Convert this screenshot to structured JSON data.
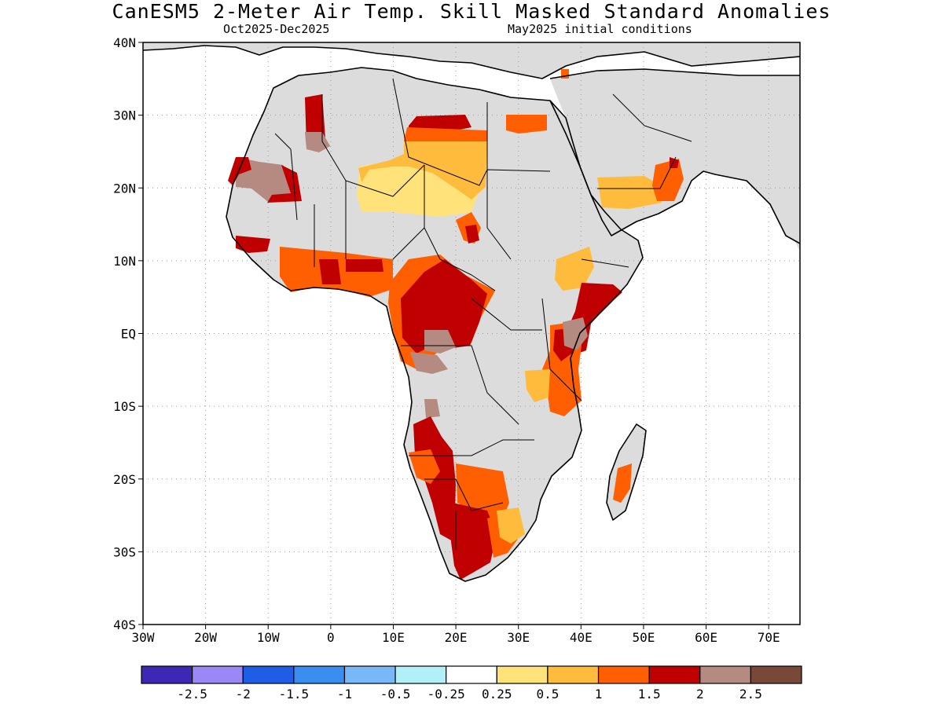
{
  "title": "CanESM5 2-Meter Air Temp. Skill Masked Standard Anomalies",
  "subtitle_left": "Oct2025-Dec2025",
  "subtitle_right": "May2025 initial conditions",
  "map": {
    "lon_range": [
      -30,
      75
    ],
    "lat_range": [
      -40,
      40
    ],
    "lat_ticks": [
      {
        "value": 40,
        "label": "40N"
      },
      {
        "value": 30,
        "label": "30N"
      },
      {
        "value": 20,
        "label": "20N"
      },
      {
        "value": 10,
        "label": "10N"
      },
      {
        "value": 0,
        "label": "EQ"
      },
      {
        "value": -10,
        "label": "10S"
      },
      {
        "value": -20,
        "label": "20S"
      },
      {
        "value": -30,
        "label": "30S"
      },
      {
        "value": -40,
        "label": "40S"
      }
    ],
    "lon_ticks": [
      {
        "value": -30,
        "label": "30W"
      },
      {
        "value": -20,
        "label": "20W"
      },
      {
        "value": -10,
        "label": "10W"
      },
      {
        "value": 0,
        "label": "0"
      },
      {
        "value": 10,
        "label": "10E"
      },
      {
        "value": 20,
        "label": "20E"
      },
      {
        "value": 30,
        "label": "30E"
      },
      {
        "value": 40,
        "label": "40E"
      },
      {
        "value": 50,
        "label": "50E"
      },
      {
        "value": 60,
        "label": "60E"
      },
      {
        "value": 70,
        "label": "70E"
      }
    ],
    "land_color": "#dcdcdc",
    "grid": "dotted"
  },
  "colorbar": {
    "colors": [
      "#3c28b4",
      "#9b87f5",
      "#1e5ee6",
      "#3a8ef0",
      "#78b7f8",
      "#b2f0f8",
      "#ffffff",
      "#ffe37a",
      "#ffbb3c",
      "#ff5f00",
      "#c00000",
      "#b58a80",
      "#784838"
    ],
    "labels": [
      "-2.5",
      "-2",
      "-1.5",
      "-1",
      "-0.5",
      "-0.25",
      "0.25",
      "0.5",
      "1",
      "1.5",
      "2",
      "2.5"
    ]
  }
}
